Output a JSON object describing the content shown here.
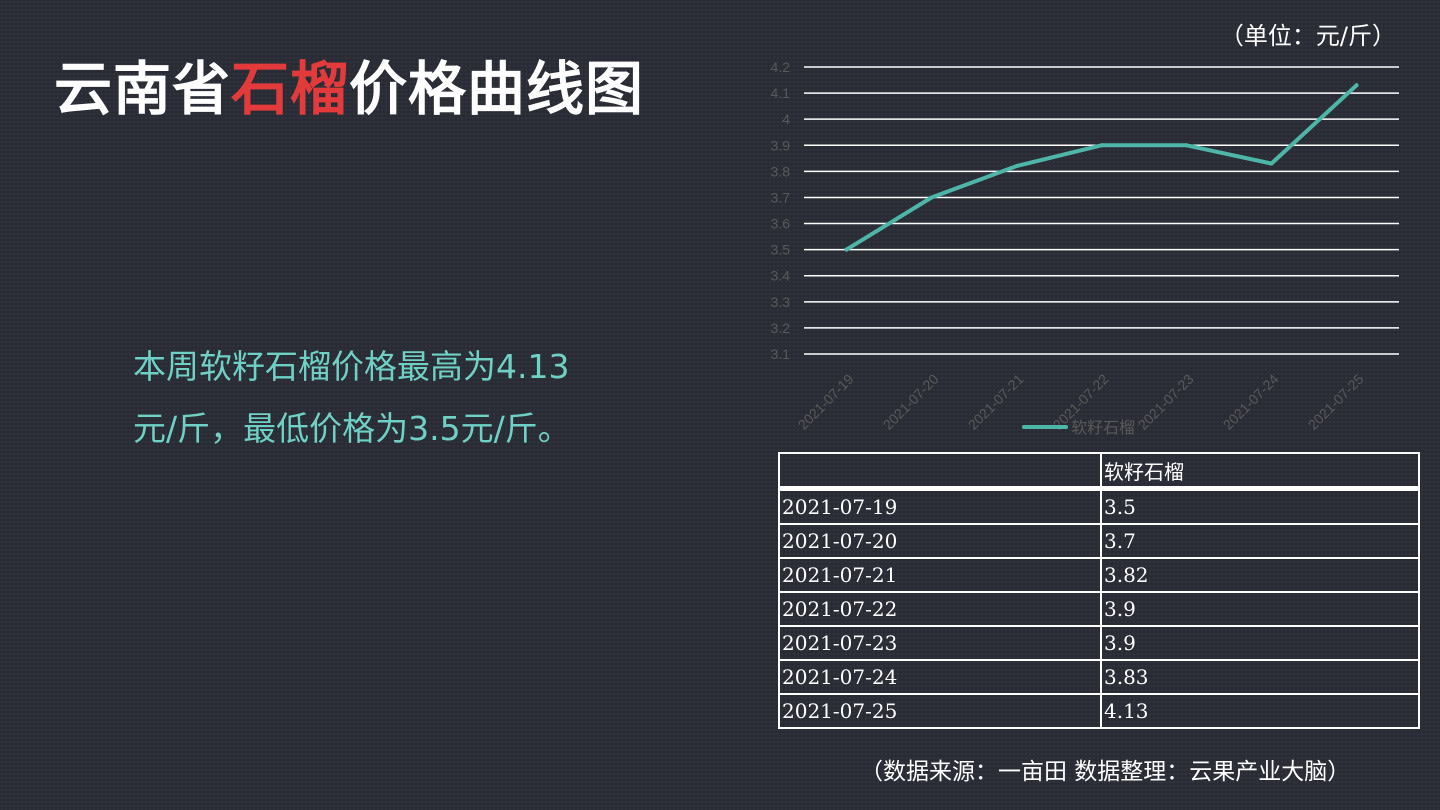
{
  "header": {
    "title_prefix": "云南省",
    "title_highlight": "石榴",
    "title_suffix": "价格曲线图",
    "unit": "（单位：元/斤）"
  },
  "summary": {
    "line1": "本周软籽石榴价格最高为4.13",
    "line2": "元/斤，最低价格为3.5元/斤。"
  },
  "colors": {
    "accent_red": "#e33b3b",
    "line_teal": "#4db6a8",
    "summary_text": "#6fd0c6",
    "axis_text": "#595959",
    "grid": "#ffffff"
  },
  "chart_data": {
    "type": "line",
    "categories": [
      "2021-07-19",
      "2021-07-20",
      "2021-07-21",
      "2021-07-22",
      "2021-07-23",
      "2021-07-24",
      "2021-07-25"
    ],
    "series": [
      {
        "name": "软籽石榴",
        "values": [
          3.5,
          3.7,
          3.82,
          3.9,
          3.9,
          3.83,
          4.13
        ]
      }
    ],
    "yticks": [
      "3.1",
      "3.2",
      "3.3",
      "3.4",
      "3.5",
      "3.6",
      "3.7",
      "3.8",
      "3.9",
      "4",
      "4.1",
      "4.2"
    ],
    "ylim": [
      3.1,
      4.2
    ],
    "grid": true,
    "legend": "bottom"
  },
  "table": {
    "header": [
      "",
      "软籽石榴"
    ],
    "rows": [
      [
        "2021-07-19",
        "3.5"
      ],
      [
        "2021-07-20",
        "3.7"
      ],
      [
        "2021-07-21",
        "3.82"
      ],
      [
        "2021-07-22",
        "3.9"
      ],
      [
        "2021-07-23",
        "3.9"
      ],
      [
        "2021-07-24",
        "3.83"
      ],
      [
        "2021-07-25",
        "4.13"
      ]
    ]
  },
  "footer": {
    "source": "（数据来源：一亩田    数据整理：云果产业大脑）"
  }
}
